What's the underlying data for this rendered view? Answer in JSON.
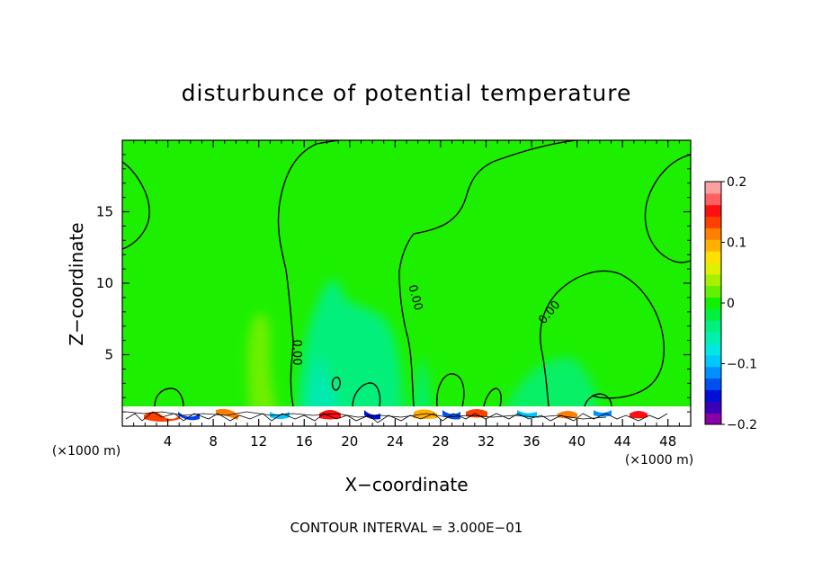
{
  "chart_data": {
    "type": "heatmap",
    "title": "disturbunce of potential temperature",
    "xlabel": "X−coordinate",
    "ylabel": "Z−coordinate",
    "x_unit_left": "(×1000 m)",
    "x_unit_right": "(×1000 m)",
    "footer": "CONTOUR INTERVAL = 3.000E−01",
    "xlim": [
      0,
      50
    ],
    "ylim": [
      0,
      20
    ],
    "x_ticks": [
      4,
      8,
      12,
      16,
      20,
      24,
      28,
      32,
      36,
      40,
      44,
      48
    ],
    "y_ticks": [
      5,
      10,
      15
    ],
    "x_tick_labels": [
      "4",
      "8",
      "12",
      "16",
      "20",
      "24",
      "28",
      "32",
      "36",
      "40",
      "44",
      "48"
    ],
    "y_tick_labels": [
      "5",
      "10",
      "15"
    ],
    "colorbar": {
      "range": [
        -0.2,
        0.2
      ],
      "tick_labels": [
        "0.2",
        "0.1",
        "0",
        "−0.1",
        "−0.2"
      ],
      "tick_values": [
        0.2,
        0.1,
        0,
        -0.1,
        -0.2
      ],
      "colors": [
        "#8a00a8",
        "#3a00b8",
        "#0010d8",
        "#0050f0",
        "#0090ff",
        "#00c8ff",
        "#00e8e0",
        "#00f0b0",
        "#00f080",
        "#00f040",
        "#10f000",
        "#60f000",
        "#a8f000",
        "#e0f000",
        "#ffe000",
        "#ffb000",
        "#ff8000",
        "#ff4000",
        "#ff1010",
        "#ff6060",
        "#ffa0a0"
      ]
    },
    "background_value": 0.02,
    "contour_labels": [
      {
        "text": "0.00",
        "x": 15.2,
        "z": 4.3
      },
      {
        "text": "0.00",
        "x": 25.0,
        "z": 8.6
      },
      {
        "text": "0.00",
        "x": 37.7,
        "z": 7.8
      }
    ],
    "features": [
      {
        "kind": "negative anomaly",
        "x_range": [
          17,
          24
        ],
        "z_range": [
          1,
          10
        ],
        "value": -0.05
      },
      {
        "kind": "negative anomaly",
        "x_range": [
          25,
          27
        ],
        "z_range": [
          1,
          5
        ],
        "value": -0.04
      },
      {
        "kind": "positive anomaly",
        "x_range": [
          11,
          14
        ],
        "z_range": [
          1,
          8
        ],
        "value": 0.05
      },
      {
        "kind": "boundary layer noise",
        "x_range": [
          0,
          50
        ],
        "z_range": [
          0,
          1.3
        ],
        "value_range": [
          -0.2,
          0.2
        ]
      }
    ]
  }
}
